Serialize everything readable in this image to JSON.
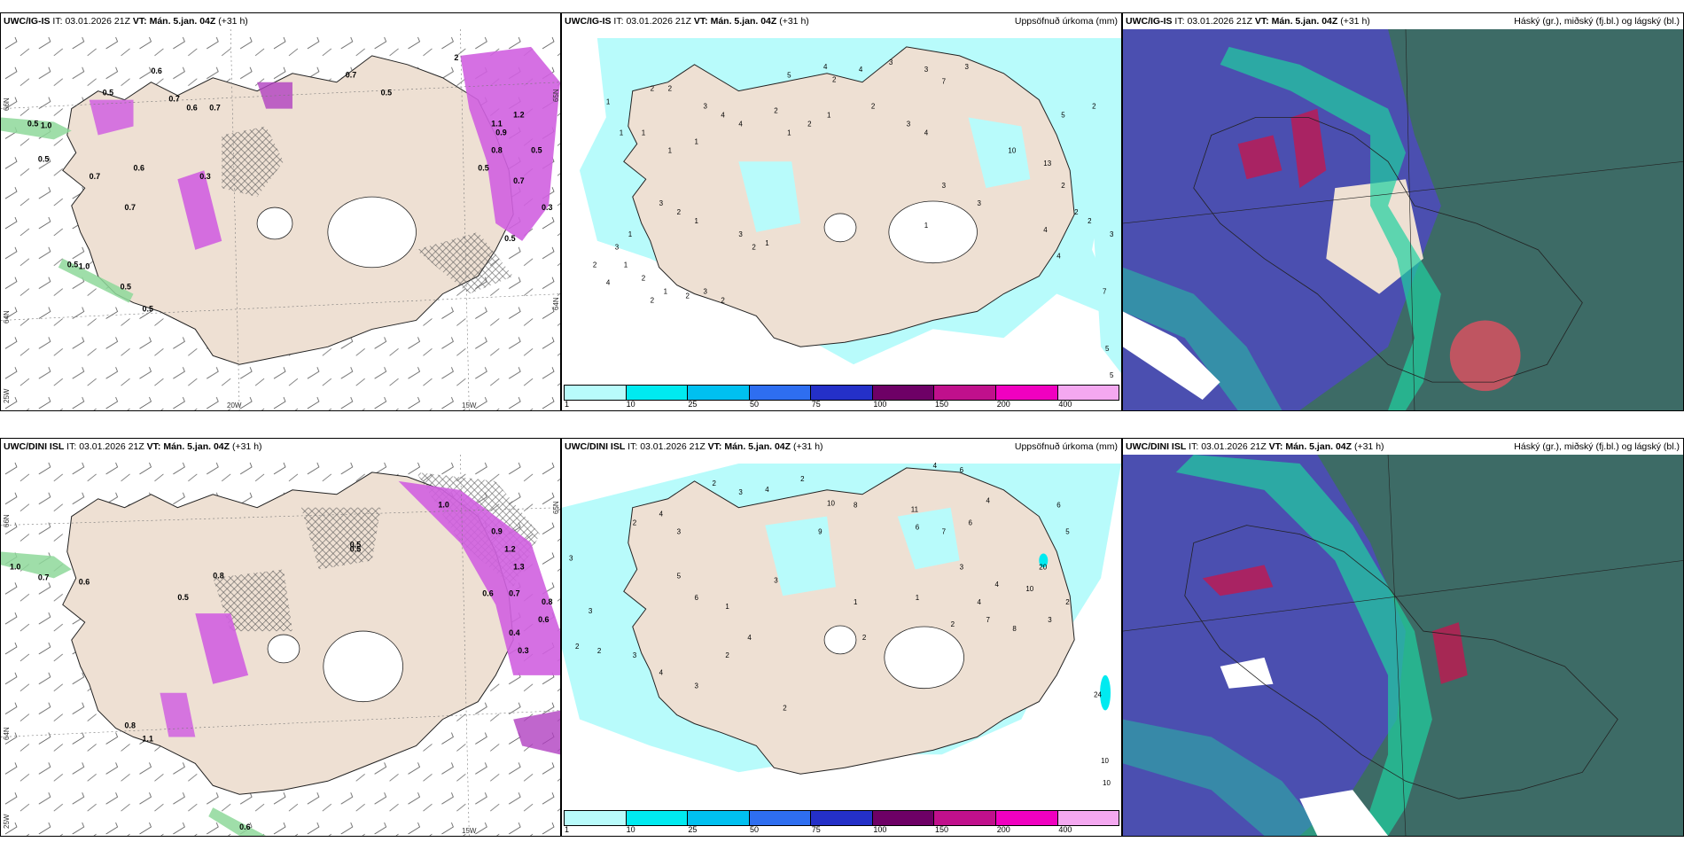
{
  "panels": [
    {
      "id": "top-left",
      "model": "UWC/IG-IS",
      "it_label": "IT:",
      "it_value": "03.01.2026 21Z",
      "vt_label": "VT:",
      "vt_value": "Mán. 5.jan. 04Z",
      "lead": "(+31 h)",
      "right_title": "",
      "coords": [
        "66N",
        "64N",
        "25W",
        "20W",
        "15W",
        "65N",
        "64N"
      ]
    },
    {
      "id": "top-middle",
      "model": "UWC/IG-IS",
      "it_label": "IT:",
      "it_value": "03.01.2026 21Z",
      "vt_label": "VT:",
      "vt_value": "Mán. 5.jan. 04Z",
      "lead": "(+31 h)",
      "right_title": "Uppsöfnuð úrkoma (mm)",
      "precip_values": [
        "5",
        "4",
        "2",
        "4",
        "3",
        "3",
        "7",
        "3",
        "1",
        "2",
        "2",
        "3",
        "4",
        "4",
        "1",
        "1",
        "1",
        "1",
        "2",
        "1",
        "2",
        "1",
        "2",
        "3",
        "4",
        "10",
        "13",
        "3",
        "3",
        "3",
        "2",
        "1",
        "1",
        "3",
        "2",
        "4",
        "1",
        "2",
        "3",
        "2",
        "1",
        "2",
        "1",
        "2",
        "3",
        "2",
        "2",
        "2",
        "4",
        "2",
        "1",
        "4",
        "5",
        "2",
        "3",
        "7",
        "5",
        "5"
      ]
    },
    {
      "id": "top-right",
      "model": "UWC/IG-IS",
      "it_label": "IT:",
      "it_value": "03.01.2026 21Z",
      "vt_label": "VT:",
      "vt_value": "Mán. 5.jan. 04Z",
      "lead": "(+31 h)",
      "right_title": "Háský (gr.), miðský (fj.bl.) og lágský (bl.)"
    },
    {
      "id": "bottom-left",
      "model": "UWC/DINI ISL",
      "it_label": "IT:",
      "it_value": "03.01.2026 21Z",
      "vt_label": "VT:",
      "vt_value": "Mán. 5.jan. 04Z",
      "lead": "(+31 h)",
      "right_title": "",
      "coords": [
        "66N",
        "64N",
        "25W",
        "15W",
        "65N"
      ]
    },
    {
      "id": "bottom-middle",
      "model": "UWC/DINI ISL",
      "it_label": "IT:",
      "it_value": "03.01.2026 21Z",
      "vt_label": "VT:",
      "vt_value": "Mán. 5.jan. 04Z",
      "lead": "(+31 h)",
      "right_title": "Uppsöfnuð úrkoma (mm)",
      "precip_values": [
        "3",
        "2",
        "4",
        "3",
        "2",
        "3",
        "4",
        "2",
        "10",
        "8",
        "4",
        "6",
        "6",
        "7",
        "6",
        "9",
        "11",
        "4",
        "20",
        "10",
        "24",
        "10",
        "10",
        "3",
        "2",
        "2",
        "3",
        "4",
        "6",
        "5",
        "1",
        "3",
        "4",
        "2",
        "3",
        "1",
        "2",
        "2",
        "8",
        "4",
        "7",
        "4",
        "2",
        "3",
        "1",
        "2",
        "3",
        "6",
        "5"
      ]
    },
    {
      "id": "bottom-right",
      "model": "UWC/DINI ISL",
      "it_label": "IT:",
      "it_value": "03.01.2026 21Z",
      "vt_label": "VT:",
      "vt_value": "Mán. 5.jan. 04Z",
      "lead": "(+31 h)",
      "right_title": "Háský (gr.), miðský (fj.bl.) og lágský (bl.)"
    }
  ],
  "wind_values_top": [
    "0.5",
    "1.0",
    "0.5",
    "0.7",
    "0.6",
    "0.7",
    "0.6",
    "0.7",
    "0.5",
    "0.7",
    "0.5",
    "0.6",
    "0.7",
    "0.5",
    "1.0",
    "0.5",
    "0.5",
    "2",
    "1.2",
    "0.9",
    "0.8",
    "0.5",
    "0.3",
    "0.5",
    "1.1",
    "0.5",
    "0.7",
    "0.3"
  ],
  "wind_values_bottom": [
    "1.0",
    "0.7",
    "0.6",
    "0.8",
    "0.5",
    "1.0",
    "0.9",
    "1.2",
    "1.3",
    "0.7",
    "0.6",
    "0.8",
    "0.4",
    "0.3",
    "0.5",
    "0.8",
    "1.1",
    "0.6",
    "0.5",
    "0.6"
  ],
  "colorbar": {
    "labels": [
      "1",
      "10",
      "25",
      "50",
      "75",
      "100",
      "150",
      "200",
      "400"
    ],
    "colors": [
      "#b8fbfb",
      "#00eaf0",
      "#00c0f0",
      "#2e6ef0",
      "#2430c8",
      "#6e0066",
      "#c0108c",
      "#f000c0",
      "#f4a8f0"
    ]
  },
  "colors": {
    "land": "#eee0d3",
    "sea": "#ffffff",
    "precip_light": "#b8fbfb",
    "snow_green": "#8ed89a",
    "snow_purple": "#d060e0",
    "cloud_high": "#3d6b66",
    "cloud_mid": "#4b4fb0",
    "cloud_low": "#1fd0a0"
  }
}
